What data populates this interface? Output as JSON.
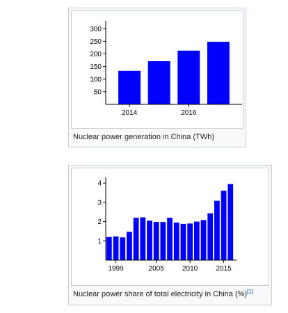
{
  "figures": [
    {
      "caption": "Nuclear power generation in China (TWh)",
      "caption_ref": ""
    },
    {
      "caption": "Nuclear power share of total electricity in China (%)",
      "caption_ref": "[1]"
    }
  ],
  "colors": {
    "bar": "#0000ff",
    "axis": "#000000"
  },
  "chart_data": [
    {
      "type": "bar",
      "title": "",
      "xlabel": "",
      "ylabel": "",
      "x": [
        2014,
        2015,
        2016,
        2017
      ],
      "values": [
        133,
        171,
        213,
        248
      ],
      "xlim": [
        2013.2,
        2017.8
      ],
      "ylim": [
        0,
        320
      ],
      "xticks": [
        2014,
        2016
      ],
      "xtick_labels": [
        "2014",
        "2016"
      ],
      "yticks": [
        50,
        100,
        150,
        200,
        250,
        300
      ],
      "ytick_labels": [
        "50",
        "100",
        "150",
        "200",
        "250",
        "300"
      ],
      "bar_width": 0.75,
      "grid": false,
      "legend": "none"
    },
    {
      "type": "bar",
      "title": "",
      "xlabel": "",
      "ylabel": "",
      "x": [
        1998,
        1999,
        2000,
        2001,
        2002,
        2003,
        2004,
        2005,
        2006,
        2007,
        2008,
        2009,
        2010,
        2011,
        2012,
        2013,
        2014,
        2015,
        2016
      ],
      "values": [
        1.2,
        1.23,
        1.18,
        1.47,
        2.2,
        2.22,
        2.05,
        1.98,
        1.98,
        2.2,
        1.95,
        1.88,
        1.9,
        2.0,
        2.08,
        2.43,
        3.08,
        3.6,
        3.95
      ],
      "xlim": [
        1997.5,
        2016.9
      ],
      "ylim": [
        0,
        4.15
      ],
      "xticks": [
        1999,
        2005,
        2010,
        2015
      ],
      "xtick_labels": [
        "1999",
        "2005",
        "2010",
        "2015"
      ],
      "yticks": [
        1,
        2,
        3,
        4
      ],
      "ytick_labels": [
        "1",
        "2",
        "3",
        "4"
      ],
      "bar_width": 0.8,
      "grid": false,
      "legend": "none"
    }
  ]
}
